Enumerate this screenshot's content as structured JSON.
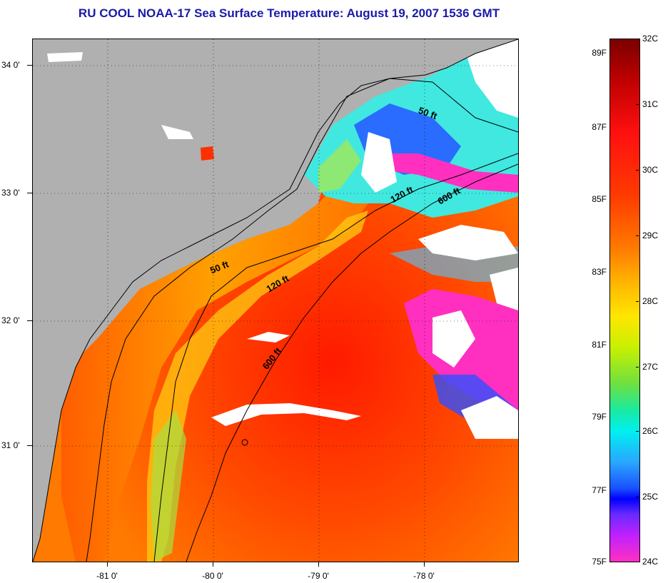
{
  "title": "RU COOL  NOAA-17  Sea Surface Temperature:  August 19, 2007 1536 GMT",
  "map": {
    "lat_labels": [
      "34 0'",
      "33 0'",
      "32 0'",
      "31 0'"
    ],
    "lon_labels": [
      "-81 0'",
      "-80 0'",
      "-79 0'",
      "-78 0'"
    ],
    "isobaths": [
      {
        "label": "50 ft"
      },
      {
        "label": "120 ft"
      },
      {
        "label": "600 ft"
      },
      {
        "label": "50 ft"
      },
      {
        "label": "120 ft"
      },
      {
        "label": "600 ft"
      }
    ]
  },
  "colorbar": {
    "fahrenheit": [
      "89F",
      "87F",
      "85F",
      "83F",
      "81F",
      "79F",
      "77F",
      "75F"
    ],
    "celsius": [
      "32C",
      "31C",
      "30C",
      "29C",
      "28C",
      "27C",
      "26C",
      "25C",
      "24C"
    ]
  },
  "colors": {
    "title": "#1a1aa8",
    "land": "#b0b0b0",
    "cloud": "#ffffff"
  }
}
